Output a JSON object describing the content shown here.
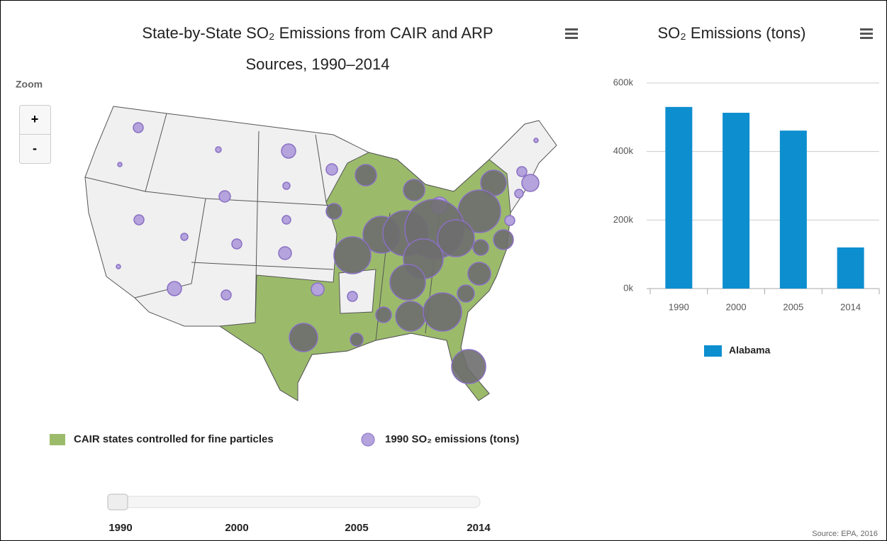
{
  "map": {
    "title_line1": "State-by-State SO₂ Emissions from CAIR and ARP",
    "title_line2": "Sources, 1990–2014",
    "zoom_label": "Zoom",
    "zoom_in": "+",
    "zoom_out": "-",
    "legend": [
      "CAIR states controlled for fine particles",
      "1990 SO₂ emissions (tons)"
    ],
    "slider_labels": [
      "1990",
      "2000",
      "2005",
      "2014"
    ]
  },
  "chart_data": {
    "type": "bar",
    "title": "SO₂ Emissions (tons)",
    "categories": [
      "1990",
      "2000",
      "2005",
      "2014"
    ],
    "series": [
      {
        "name": "Alabama",
        "color": "#0d8ecf",
        "values": [
          530000,
          513000,
          461000,
          120000
        ]
      }
    ],
    "ylim": [
      0,
      600000
    ],
    "yticks": [
      {
        "value": 0,
        "label": "0k"
      },
      {
        "value": 200000,
        "label": "200k"
      },
      {
        "value": 400000,
        "label": "400k"
      },
      {
        "value": 600000,
        "label": "600k"
      }
    ],
    "grid": true,
    "source": "Source: EPA, 2016"
  }
}
